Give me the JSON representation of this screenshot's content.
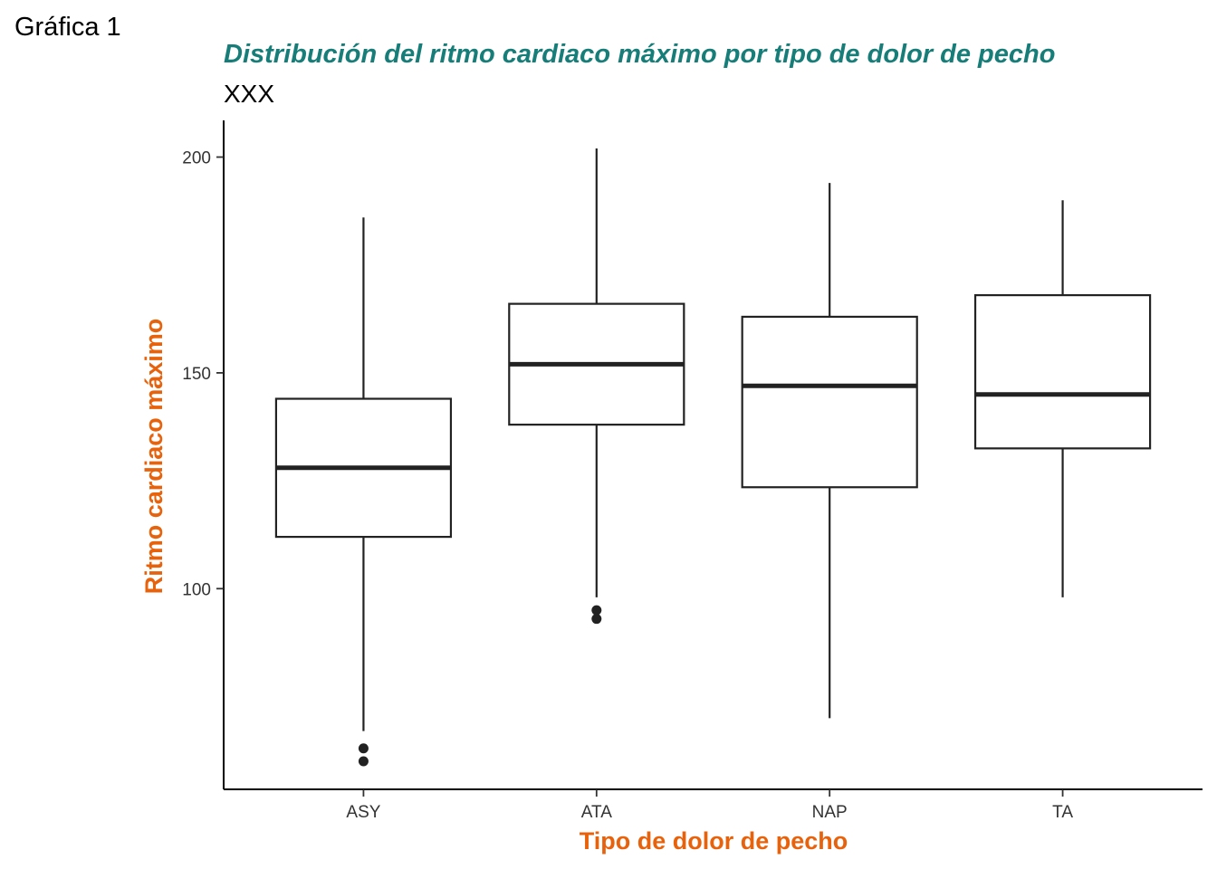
{
  "tag": "Gráfica 1",
  "chart_data": {
    "type": "boxplot",
    "title": "Distribución del ritmo cardiaco máximo por tipo de dolor de pecho",
    "subtitle": "XXX",
    "xlabel": "Tipo de dolor de pecho",
    "ylabel": "Ritmo cardiaco máximo",
    "categories": [
      "ASY",
      "ATA",
      "NAP",
      "TA"
    ],
    "boxes": [
      {
        "category": "ASY",
        "whisker_low": 67,
        "q1": 112,
        "median": 128,
        "q3": 144,
        "whisker_high": 186,
        "outliers": [
          60,
          63
        ]
      },
      {
        "category": "ATA",
        "whisker_low": 98,
        "q1": 138,
        "median": 152,
        "q3": 166,
        "whisker_high": 202,
        "outliers": [
          93,
          95
        ]
      },
      {
        "category": "NAP",
        "whisker_low": 70,
        "q1": 123.5,
        "median": 147,
        "q3": 163,
        "whisker_high": 194,
        "outliers": []
      },
      {
        "category": "TA",
        "whisker_low": 98,
        "q1": 132.5,
        "median": 145,
        "q3": 168,
        "whisker_high": 190,
        "outliers": []
      }
    ],
    "y_ticks": [
      100,
      150,
      200
    ],
    "y_tick_labels": [
      "100",
      "150",
      "200"
    ],
    "ylim": [
      53.5,
      208.5
    ],
    "grid": false,
    "legend": "none",
    "colors": {
      "title": "#167d78",
      "axis_title": "#e8620c",
      "box_line": "#222222",
      "box_fill": "#ffffff"
    }
  }
}
